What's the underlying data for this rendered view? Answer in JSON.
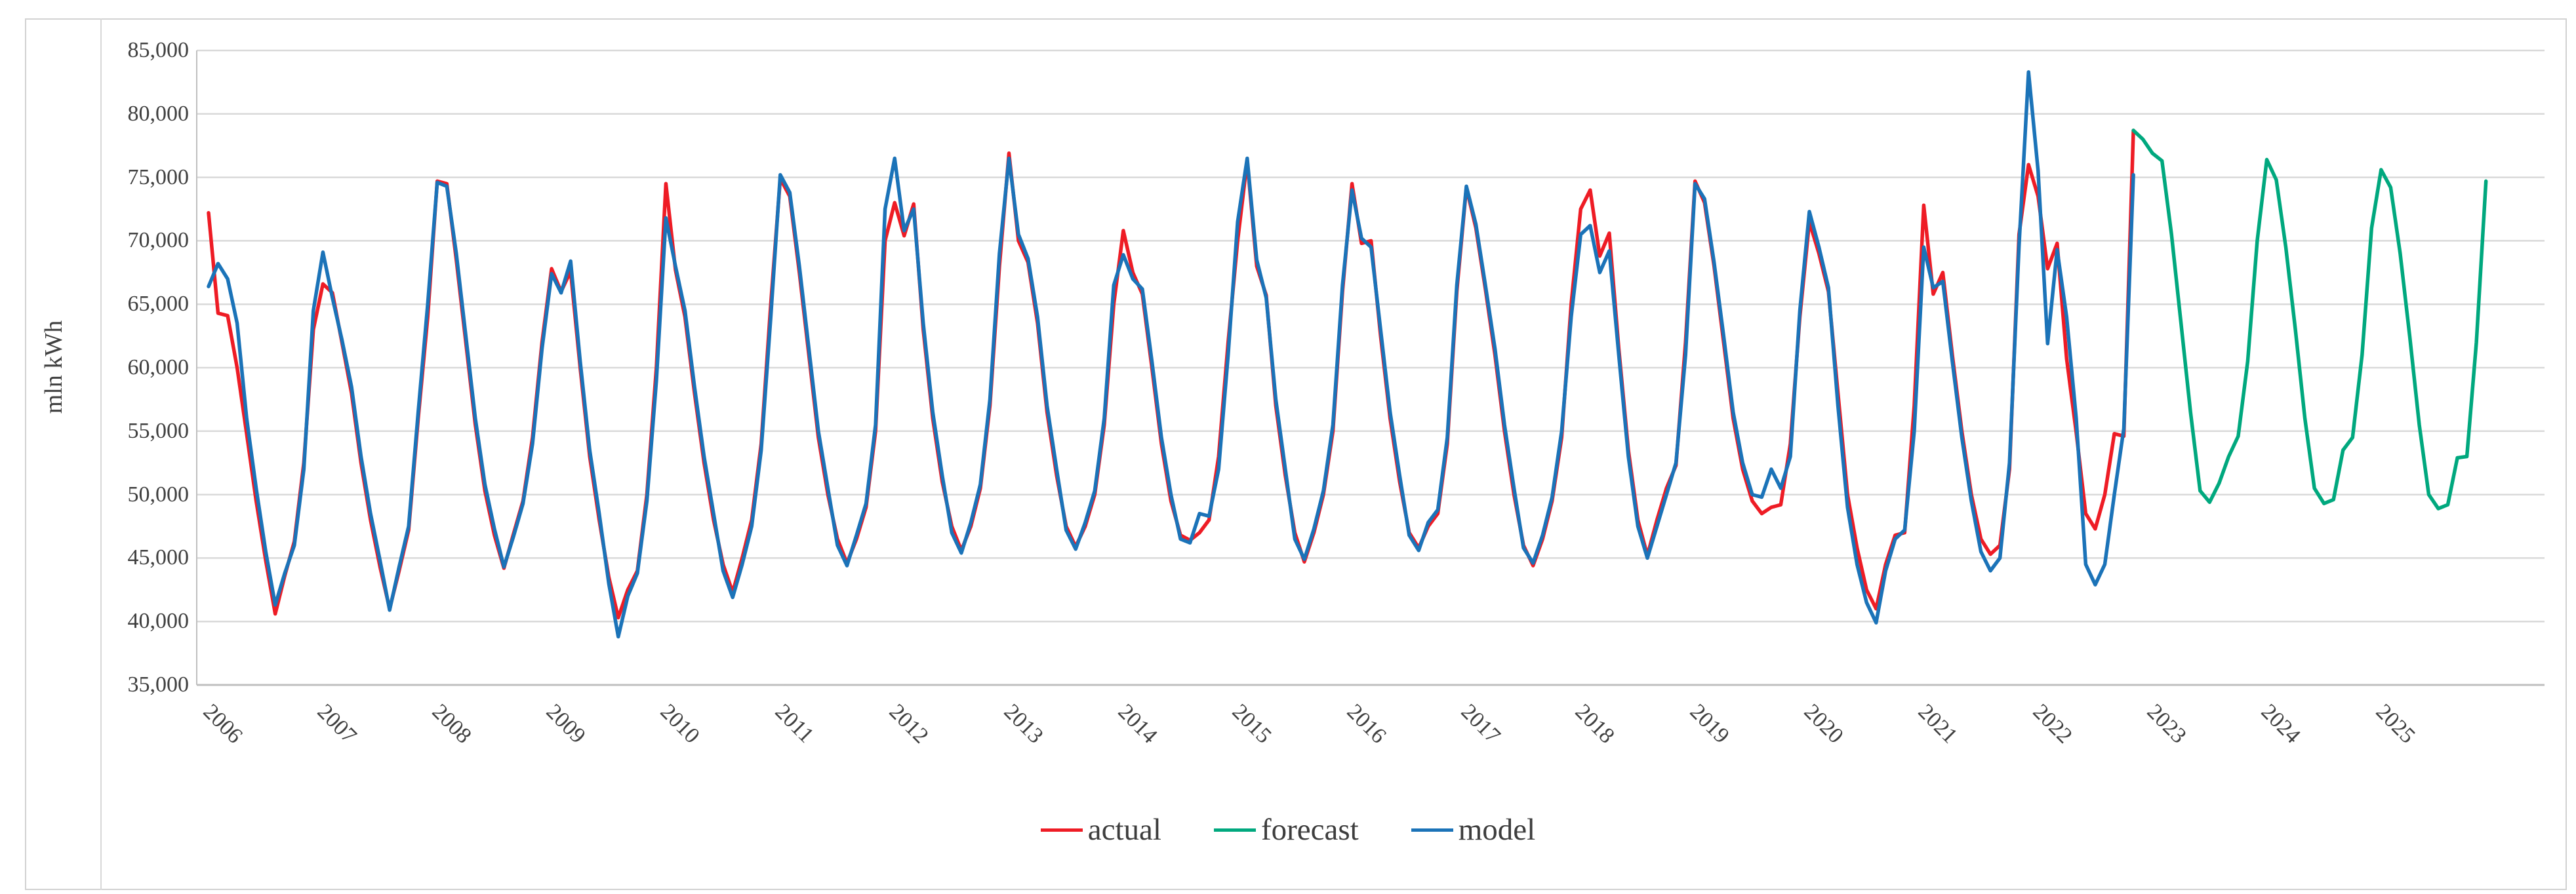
{
  "figure": {
    "y_axis_title": "mln kWh"
  },
  "legend": {
    "items": [
      {
        "label": "actual",
        "color": "#ee1c25"
      },
      {
        "label": "forecast",
        "color": "#00a87e"
      },
      {
        "label": "model",
        "color": "#1b73b8"
      }
    ]
  },
  "colors": {
    "gridline": "#d9d9d9",
    "axis_line": "#bfbfbf",
    "actual": "#ee1c25",
    "forecast": "#00a87e",
    "model": "#1b73b8"
  },
  "chart_data": {
    "type": "line",
    "title": "",
    "xlabel": "",
    "ylabel": "mln kWh",
    "ylim": [
      35000,
      85000
    ],
    "y_tick_step": 5000,
    "y_tick_labels": [
      "85,000",
      "80,000",
      "75,000",
      "70,000",
      "65,000",
      "60,000",
      "55,000",
      "50,000",
      "45,000",
      "40,000",
      "35,000"
    ],
    "x_tick_labels": [
      "2006",
      "2007",
      "2008",
      "2009",
      "2010",
      "2011",
      "2012",
      "2013",
      "2014",
      "2015",
      "2016",
      "2017",
      "2018",
      "2019",
      "2020",
      "2021",
      "2022",
      "2023",
      "2024",
      "2025"
    ],
    "x_frequency": "monthly",
    "grid": "horizontal",
    "legend_position": "bottom",
    "series": [
      {
        "name": "actual",
        "color": "#ee1c25",
        "start_month": "2006-01",
        "end_month": "2022-11",
        "values": [
          72200,
          64300,
          64100,
          60000,
          54800,
          49500,
          44800,
          40600,
          43600,
          46300,
          52500,
          63000,
          66600,
          65900,
          62000,
          58000,
          52500,
          48000,
          44300,
          41000,
          44000,
          47200,
          56000,
          64000,
          74700,
          74500,
          68500,
          62000,
          55500,
          50300,
          46800,
          44200,
          46900,
          49500,
          54500,
          62000,
          67800,
          66000,
          67600,
          60000,
          53000,
          48000,
          43500,
          40300,
          42500,
          44000,
          50000,
          60000,
          74500,
          67700,
          64000,
          58000,
          52500,
          48000,
          44500,
          42300,
          45000,
          48000,
          54000,
          65000,
          74900,
          73500,
          67500,
          61000,
          54500,
          50000,
          46500,
          44600,
          46500,
          49000,
          55000,
          70000,
          73000,
          70400,
          72900,
          63000,
          56000,
          51000,
          47500,
          45600,
          47500,
          50500,
          57000,
          68000,
          76900,
          70000,
          68300,
          63500,
          56500,
          51500,
          47500,
          45900,
          47500,
          50000,
          55500,
          65000,
          70800,
          67500,
          65800,
          60000,
          54000,
          49500,
          46800,
          46400,
          47000,
          48000,
          53000,
          62000,
          70000,
          76300,
          68000,
          65700,
          57000,
          51500,
          47000,
          44700,
          47000,
          50000,
          55000,
          66000,
          74500,
          69800,
          70000,
          62500,
          56000,
          51000,
          47000,
          45800,
          47500,
          48500,
          54000,
          66000,
          74200,
          71000,
          66200,
          61000,
          55000,
          50000,
          46000,
          44400,
          46500,
          49500,
          54500,
          65000,
          72500,
          74000,
          68800,
          70600,
          61500,
          53500,
          48000,
          45200,
          48000,
          50500,
          52300,
          62000,
          74700,
          73000,
          68000,
          62000,
          56000,
          52000,
          49500,
          48500,
          49000,
          49200,
          54000,
          64000,
          71500,
          69000,
          66000,
          58000,
          50000,
          45800,
          42500,
          41000,
          44500,
          46800,
          47000,
          57000,
          72800,
          65800,
          67500,
          61000,
          55000,
          50000,
          46500,
          45300,
          46000,
          52000,
          70500,
          76000,
          73500,
          67800,
          69800,
          60700,
          54900,
          48500,
          47300,
          50000,
          54800,
          54600,
          78700
        ]
      },
      {
        "name": "forecast",
        "color": "#00a87e",
        "start_month": "2022-11",
        "end_month": "2025-12",
        "values": [
          78700,
          78000,
          76900,
          76300,
          70500,
          63500,
          56500,
          50300,
          49400,
          50900,
          53000,
          54600,
          60500,
          70000,
          76400,
          74800,
          69500,
          63000,
          56000,
          50500,
          49300,
          49600,
          53500,
          54500,
          61000,
          71000,
          75600,
          74200,
          69000,
          62500,
          55500,
          50000,
          48900,
          49200,
          52900,
          53000,
          62000,
          74700
        ]
      },
      {
        "name": "model",
        "color": "#1b73b8",
        "start_month": "2006-01",
        "end_month": "2022-11",
        "values": [
          66400,
          68200,
          67000,
          63500,
          56000,
          50500,
          45500,
          41300,
          43800,
          46000,
          52000,
          64500,
          69100,
          65500,
          62200,
          58500,
          53000,
          48500,
          44800,
          40900,
          44300,
          47500,
          56500,
          65000,
          74600,
          74300,
          69000,
          62500,
          56000,
          50800,
          47300,
          44300,
          46700,
          49300,
          54000,
          61500,
          67400,
          65900,
          68400,
          60500,
          53500,
          48500,
          43000,
          38800,
          42000,
          43800,
          49500,
          59000,
          71800,
          68000,
          64500,
          58500,
          53000,
          48500,
          44000,
          41900,
          44500,
          47500,
          53500,
          64000,
          75200,
          73800,
          68000,
          61500,
          55000,
          50500,
          46000,
          44400,
          46800,
          49300,
          55500,
          72500,
          76500,
          70800,
          72500,
          63500,
          56500,
          51500,
          47000,
          45400,
          47800,
          50800,
          57500,
          69000,
          76500,
          70500,
          68600,
          64000,
          57000,
          52000,
          47200,
          45700,
          47800,
          50300,
          56000,
          66500,
          68900,
          67000,
          66200,
          60500,
          54500,
          50000,
          46500,
          46200,
          48500,
          48300,
          52000,
          61000,
          71500,
          76500,
          68500,
          65500,
          57500,
          52000,
          46500,
          44900,
          47300,
          50300,
          55500,
          66500,
          74000,
          70200,
          69500,
          63000,
          56500,
          51500,
          46800,
          45600,
          47800,
          48800,
          54500,
          66500,
          74300,
          71300,
          66500,
          61500,
          55500,
          50500,
          45800,
          44600,
          46800,
          49800,
          55000,
          64000,
          70500,
          71200,
          67500,
          69200,
          61000,
          53000,
          47500,
          45000,
          47500,
          50000,
          52500,
          61000,
          74500,
          73300,
          68300,
          62500,
          56500,
          52500,
          50000,
          49800,
          52000,
          50500,
          53000,
          64500,
          72300,
          69500,
          66300,
          57000,
          49000,
          44500,
          41500,
          39900,
          44000,
          46500,
          47200,
          55000,
          69500,
          66300,
          66800,
          60500,
          54500,
          49500,
          45500,
          44000,
          45000,
          52500,
          69600,
          83300,
          75500,
          61900,
          69300,
          64000,
          56000,
          44500,
          42900,
          44500,
          50000,
          55200,
          75200
        ]
      }
    ]
  }
}
